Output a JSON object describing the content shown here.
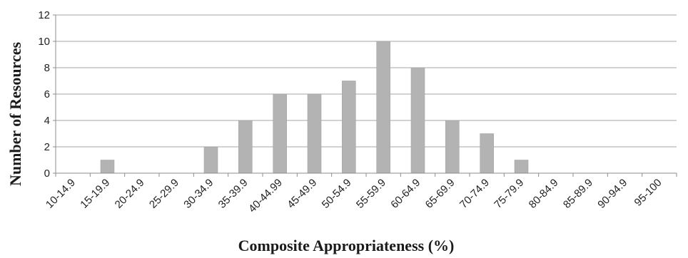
{
  "chart_data": {
    "type": "bar",
    "categories": [
      "10-14.9",
      "15-19.9",
      "20-24.9",
      "25-29.9",
      "30-34.9",
      "35-39.9",
      "40-44.99",
      "45-49.9",
      "50-54.9",
      "55-59.9",
      "60-64.9",
      "65-69.9",
      "70-74.9",
      "75-79.9",
      "80-84.9",
      "85-89.9",
      "90-94.9",
      "95-100"
    ],
    "values": [
      0,
      1,
      0,
      0,
      2,
      4,
      6,
      6,
      7,
      10,
      8,
      4,
      3,
      1,
      0,
      0,
      0,
      0
    ],
    "xlabel": "Composite Appropriateness (%)",
    "ylabel": "Number of Resources",
    "ylim": [
      0,
      12
    ],
    "yticks": [
      0,
      2,
      4,
      6,
      8,
      10,
      12
    ],
    "grid": true,
    "colors": {
      "bar": "#b3b3b3",
      "grid": "#a6a6a6"
    }
  }
}
